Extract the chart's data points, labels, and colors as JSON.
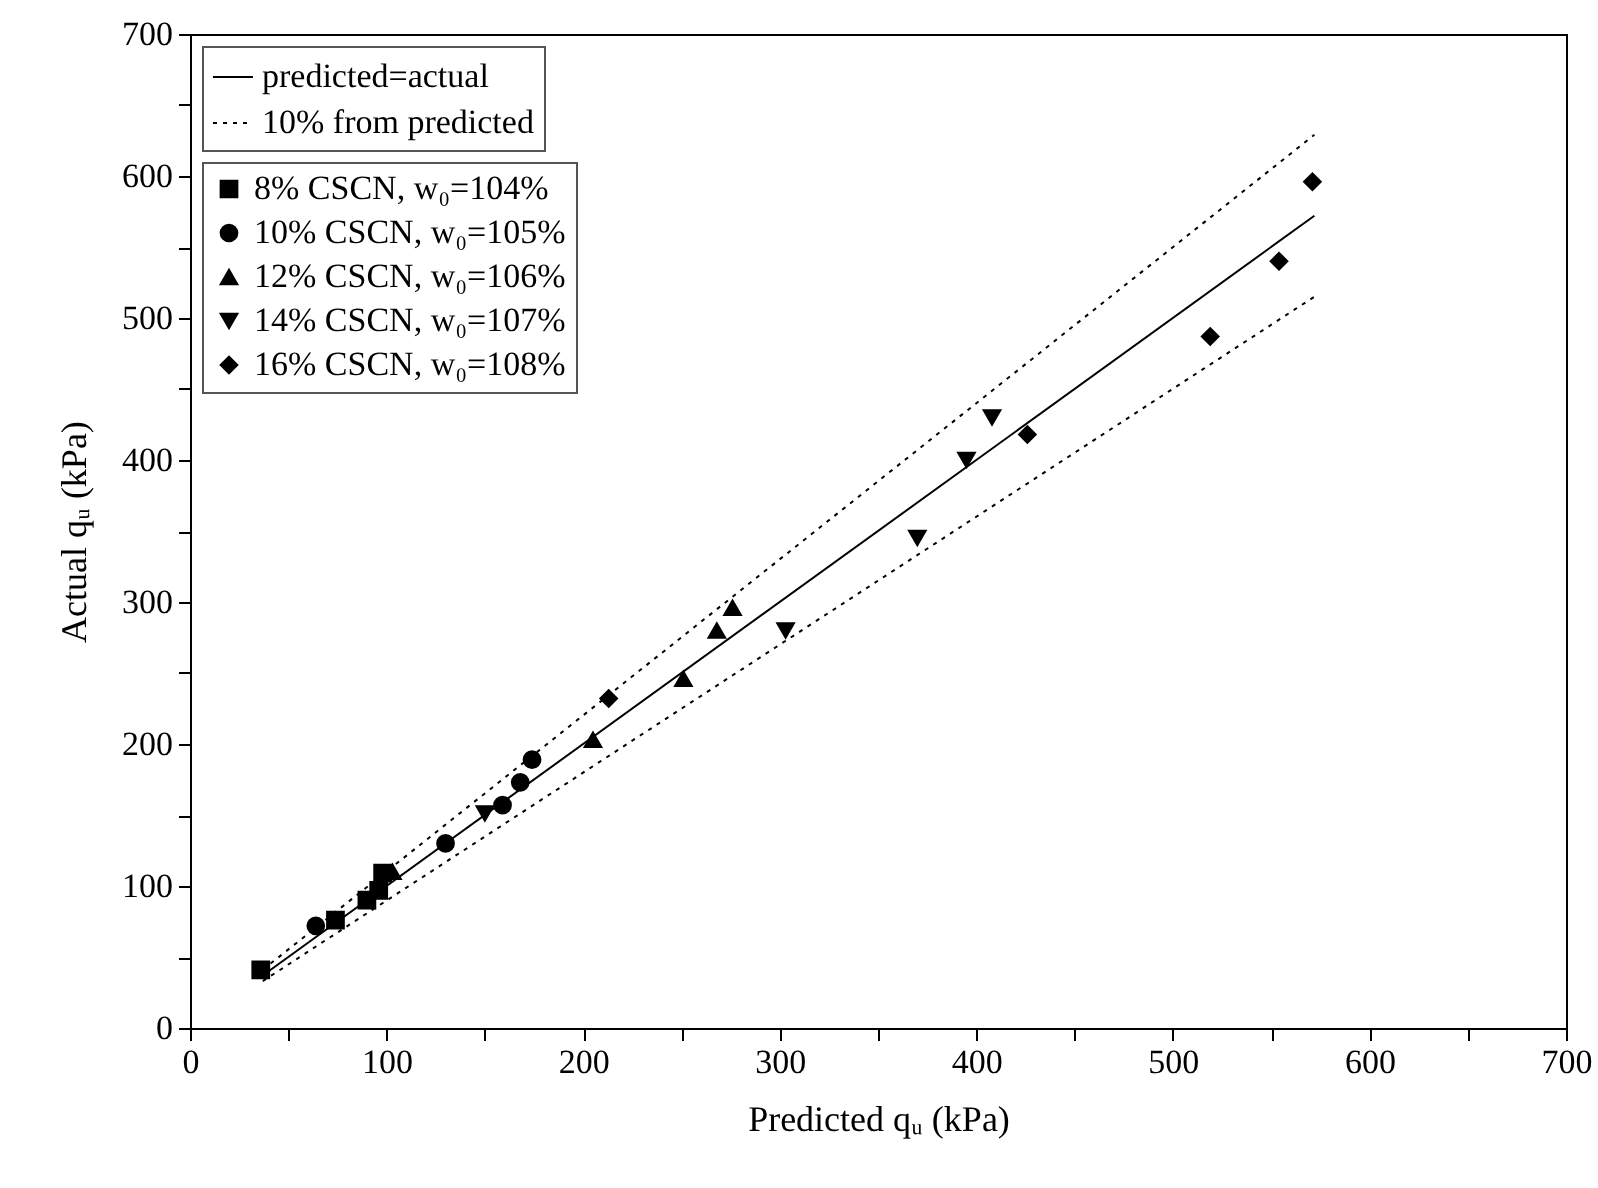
{
  "chart_data": {
    "type": "scatter",
    "xlabel": "Predicted qᵤ (kPa)",
    "ylabel": "Actual qᵤ (kPa)",
    "xlim": [
      0,
      700
    ],
    "ylim": [
      0,
      700
    ],
    "xticks": [
      0,
      {
        "value": 50,
        "label": null
      },
      100,
      {
        "value": 150,
        "label": null
      },
      200,
      {
        "value": 250,
        "label": null
      },
      300,
      {
        "value": 350,
        "label": null
      },
      400,
      {
        "value": 450,
        "label": null
      },
      500,
      {
        "value": 550,
        "label": null
      },
      600,
      {
        "value": 650,
        "label": null
      },
      700
    ],
    "yticks": [
      0,
      {
        "value": 50,
        "label": null
      },
      100,
      {
        "value": 150,
        "label": null
      },
      200,
      {
        "value": 250,
        "label": null
      },
      300,
      {
        "value": 350,
        "label": null
      },
      400,
      {
        "value": 450,
        "label": null
      },
      500,
      {
        "value": 550,
        "label": null
      },
      600,
      {
        "value": 650,
        "label": null
      },
      700
    ],
    "grid": false,
    "legend": "top left",
    "series": [
      {
        "name": "predicted=actual",
        "type": "line",
        "line_style": "solid",
        "color": "#000000",
        "x": [
          37,
          572
        ],
        "values": [
          37,
          572
        ]
      },
      {
        "name": "10% from predicted",
        "type": "line",
        "line_style": "dotted",
        "color": "#000000",
        "x": [
          37,
          572
        ],
        "values": [
          41,
          629
        ]
      },
      {
        "type": "line",
        "line_style": "dotted",
        "color": "#000000",
        "x": [
          37,
          572
        ],
        "values": [
          33,
          515
        ]
      },
      {
        "name": "8% CSCN, w₀=104%",
        "marker": "square",
        "color": "#000000",
        "x": [
          36,
          74,
          90,
          96,
          98
        ],
        "values": [
          41,
          76,
          90,
          97,
          109
        ]
      },
      {
        "name": "10% CSCN, w₀=105%",
        "marker": "circle",
        "color": "#000000",
        "x": [
          64,
          130,
          159,
          168,
          174
        ],
        "values": [
          72,
          130,
          157,
          173,
          189
        ]
      },
      {
        "name": "12% CSCN, w₀=106%",
        "marker": "triangle",
        "color": "#000000",
        "x": [
          103,
          205,
          251,
          268,
          276
        ],
        "values": [
          110,
          203,
          246,
          280,
          296
        ]
      },
      {
        "name": "14% CSCN, w₀=107%",
        "marker": "triangle-down",
        "color": "#000000",
        "x": [
          150,
          303,
          370,
          395,
          408
        ],
        "values": [
          151,
          280,
          345,
          400,
          430
        ]
      },
      {
        "name": "16% CSCN, w₀=108%",
        "marker": "diamond",
        "color": "#000000",
        "x": [
          213,
          426,
          519,
          554,
          571
        ],
        "values": [
          232,
          418,
          487,
          540,
          596
        ]
      }
    ]
  }
}
